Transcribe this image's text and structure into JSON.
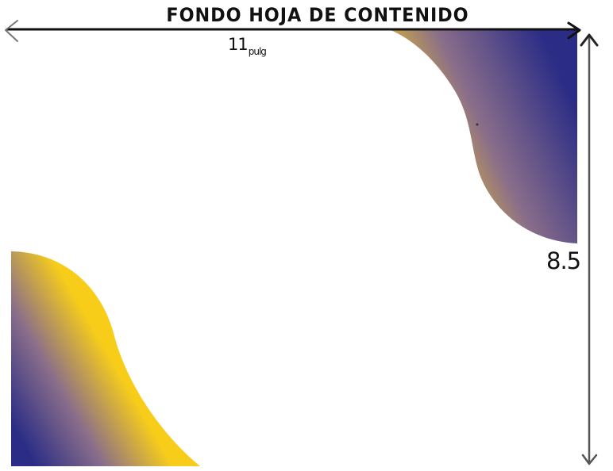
{
  "title": "FONDO HOJA DE CONTENIDO",
  "dimensions": {
    "width_value": "11",
    "width_unit": "pulg",
    "height_value": "8.5"
  },
  "colors": {
    "navy": "#2a2c86",
    "gold": "#f7cd1a",
    "ink": "#111111",
    "background": "#ffffff"
  }
}
